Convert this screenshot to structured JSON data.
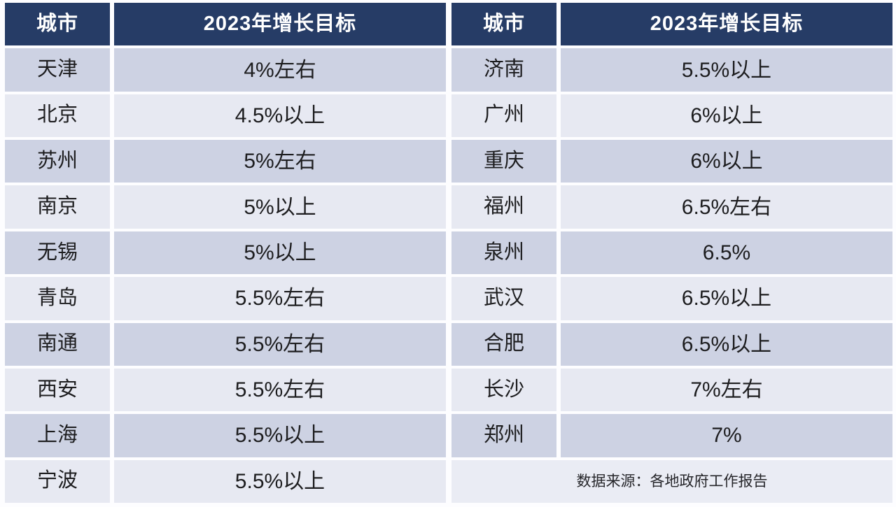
{
  "colors": {
    "header_bg": "#263c66",
    "header_text": "#ffffff",
    "row_dark": "#cdd2e3",
    "row_light": "#e7e9f2",
    "cell_text": "#1d1d1f",
    "background": "#ffffff"
  },
  "left_table": {
    "headers": {
      "city": "城市",
      "target": "2023年增长目标"
    },
    "rows": [
      {
        "city": "天津",
        "target": "4%左右"
      },
      {
        "city": "北京",
        "target": "4.5%以上"
      },
      {
        "city": "苏州",
        "target": "5%左右"
      },
      {
        "city": "南京",
        "target": "5%以上"
      },
      {
        "city": "无锡",
        "target": "5%以上"
      },
      {
        "city": "青岛",
        "target": "5.5%左右"
      },
      {
        "city": "南通",
        "target": "5.5%左右"
      },
      {
        "city": "西安",
        "target": "5.5%左右"
      },
      {
        "city": "上海",
        "target": "5.5%以上"
      },
      {
        "city": "宁波",
        "target": "5.5%以上"
      }
    ]
  },
  "right_table": {
    "headers": {
      "city": "城市",
      "target": "2023年增长目标"
    },
    "rows": [
      {
        "city": "济南",
        "target": "5.5%以上"
      },
      {
        "city": "广州",
        "target": "6%以上"
      },
      {
        "city": "重庆",
        "target": "6%以上"
      },
      {
        "city": "福州",
        "target": "6.5%左右"
      },
      {
        "city": "泉州",
        "target": "6.5%"
      },
      {
        "city": "武汉",
        "target": "6.5%以上"
      },
      {
        "city": "合肥",
        "target": "6.5%以上"
      },
      {
        "city": "长沙",
        "target": "7%左右"
      },
      {
        "city": "郑州",
        "target": "7%"
      }
    ],
    "source_note": "数据来源：各地政府工作报告"
  },
  "chart_data": {
    "type": "table",
    "title": "2023年增长目标",
    "columns": [
      "城市",
      "2023年增长目标"
    ],
    "rows": [
      [
        "天津",
        "4%左右"
      ],
      [
        "北京",
        "4.5%以上"
      ],
      [
        "苏州",
        "5%左右"
      ],
      [
        "南京",
        "5%以上"
      ],
      [
        "无锡",
        "5%以上"
      ],
      [
        "青岛",
        "5.5%左右"
      ],
      [
        "南通",
        "5.5%左右"
      ],
      [
        "西安",
        "5.5%左右"
      ],
      [
        "上海",
        "5.5%以上"
      ],
      [
        "宁波",
        "5.5%以上"
      ],
      [
        "济南",
        "5.5%以上"
      ],
      [
        "广州",
        "6%以上"
      ],
      [
        "重庆",
        "6%以上"
      ],
      [
        "福州",
        "6.5%左右"
      ],
      [
        "泉州",
        "6.5%"
      ],
      [
        "武汉",
        "6.5%以上"
      ],
      [
        "合肥",
        "6.5%以上"
      ],
      [
        "长沙",
        "7%左右"
      ],
      [
        "郑州",
        "7%"
      ]
    ],
    "source": "数据来源：各地政府工作报告",
    "layout": "two side-by-side panels, dark navy header row, alternating lavender striped rows, source note merged cell bottom-right"
  }
}
